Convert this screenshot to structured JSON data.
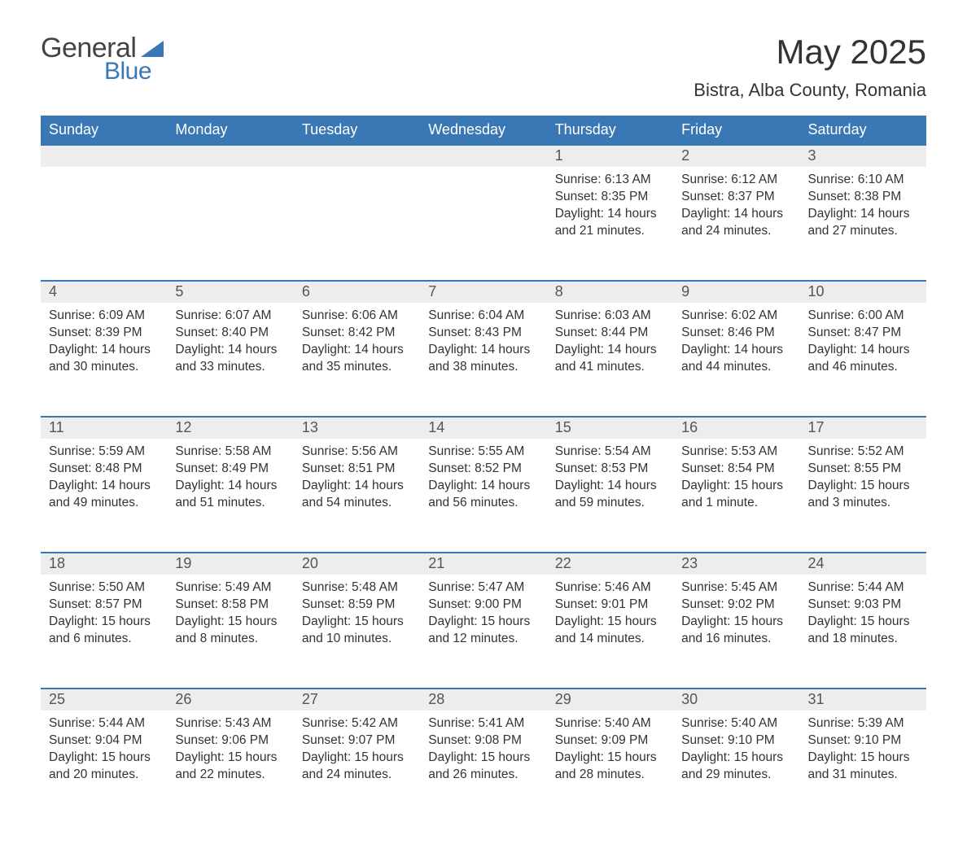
{
  "logo": {
    "text_general": "General",
    "text_blue": "Blue",
    "triangle_color": "#3a78b5"
  },
  "title": "May 2025",
  "location": "Bistra, Alba County, Romania",
  "colors": {
    "header_bg": "#3a78b5",
    "header_text": "#ffffff",
    "daynum_bg": "#ededed",
    "daynum_text": "#555555",
    "body_text": "#333333",
    "border_top": "#3a78b5"
  },
  "weekdays": [
    "Sunday",
    "Monday",
    "Tuesday",
    "Wednesday",
    "Thursday",
    "Friday",
    "Saturday"
  ],
  "first_weekday_index": 4,
  "labels": {
    "sunrise": "Sunrise",
    "sunset": "Sunset",
    "daylight": "Daylight"
  },
  "days": [
    {
      "n": 1,
      "sunrise": "6:13 AM",
      "sunset": "8:35 PM",
      "daylight": "14 hours and 21 minutes."
    },
    {
      "n": 2,
      "sunrise": "6:12 AM",
      "sunset": "8:37 PM",
      "daylight": "14 hours and 24 minutes."
    },
    {
      "n": 3,
      "sunrise": "6:10 AM",
      "sunset": "8:38 PM",
      "daylight": "14 hours and 27 minutes."
    },
    {
      "n": 4,
      "sunrise": "6:09 AM",
      "sunset": "8:39 PM",
      "daylight": "14 hours and 30 minutes."
    },
    {
      "n": 5,
      "sunrise": "6:07 AM",
      "sunset": "8:40 PM",
      "daylight": "14 hours and 33 minutes."
    },
    {
      "n": 6,
      "sunrise": "6:06 AM",
      "sunset": "8:42 PM",
      "daylight": "14 hours and 35 minutes."
    },
    {
      "n": 7,
      "sunrise": "6:04 AM",
      "sunset": "8:43 PM",
      "daylight": "14 hours and 38 minutes."
    },
    {
      "n": 8,
      "sunrise": "6:03 AM",
      "sunset": "8:44 PM",
      "daylight": "14 hours and 41 minutes."
    },
    {
      "n": 9,
      "sunrise": "6:02 AM",
      "sunset": "8:46 PM",
      "daylight": "14 hours and 44 minutes."
    },
    {
      "n": 10,
      "sunrise": "6:00 AM",
      "sunset": "8:47 PM",
      "daylight": "14 hours and 46 minutes."
    },
    {
      "n": 11,
      "sunrise": "5:59 AM",
      "sunset": "8:48 PM",
      "daylight": "14 hours and 49 minutes."
    },
    {
      "n": 12,
      "sunrise": "5:58 AM",
      "sunset": "8:49 PM",
      "daylight": "14 hours and 51 minutes."
    },
    {
      "n": 13,
      "sunrise": "5:56 AM",
      "sunset": "8:51 PM",
      "daylight": "14 hours and 54 minutes."
    },
    {
      "n": 14,
      "sunrise": "5:55 AM",
      "sunset": "8:52 PM",
      "daylight": "14 hours and 56 minutes."
    },
    {
      "n": 15,
      "sunrise": "5:54 AM",
      "sunset": "8:53 PM",
      "daylight": "14 hours and 59 minutes."
    },
    {
      "n": 16,
      "sunrise": "5:53 AM",
      "sunset": "8:54 PM",
      "daylight": "15 hours and 1 minute."
    },
    {
      "n": 17,
      "sunrise": "5:52 AM",
      "sunset": "8:55 PM",
      "daylight": "15 hours and 3 minutes."
    },
    {
      "n": 18,
      "sunrise": "5:50 AM",
      "sunset": "8:57 PM",
      "daylight": "15 hours and 6 minutes."
    },
    {
      "n": 19,
      "sunrise": "5:49 AM",
      "sunset": "8:58 PM",
      "daylight": "15 hours and 8 minutes."
    },
    {
      "n": 20,
      "sunrise": "5:48 AM",
      "sunset": "8:59 PM",
      "daylight": "15 hours and 10 minutes."
    },
    {
      "n": 21,
      "sunrise": "5:47 AM",
      "sunset": "9:00 PM",
      "daylight": "15 hours and 12 minutes."
    },
    {
      "n": 22,
      "sunrise": "5:46 AM",
      "sunset": "9:01 PM",
      "daylight": "15 hours and 14 minutes."
    },
    {
      "n": 23,
      "sunrise": "5:45 AM",
      "sunset": "9:02 PM",
      "daylight": "15 hours and 16 minutes."
    },
    {
      "n": 24,
      "sunrise": "5:44 AM",
      "sunset": "9:03 PM",
      "daylight": "15 hours and 18 minutes."
    },
    {
      "n": 25,
      "sunrise": "5:44 AM",
      "sunset": "9:04 PM",
      "daylight": "15 hours and 20 minutes."
    },
    {
      "n": 26,
      "sunrise": "5:43 AM",
      "sunset": "9:06 PM",
      "daylight": "15 hours and 22 minutes."
    },
    {
      "n": 27,
      "sunrise": "5:42 AM",
      "sunset": "9:07 PM",
      "daylight": "15 hours and 24 minutes."
    },
    {
      "n": 28,
      "sunrise": "5:41 AM",
      "sunset": "9:08 PM",
      "daylight": "15 hours and 26 minutes."
    },
    {
      "n": 29,
      "sunrise": "5:40 AM",
      "sunset": "9:09 PM",
      "daylight": "15 hours and 28 minutes."
    },
    {
      "n": 30,
      "sunrise": "5:40 AM",
      "sunset": "9:10 PM",
      "daylight": "15 hours and 29 minutes."
    },
    {
      "n": 31,
      "sunrise": "5:39 AM",
      "sunset": "9:10 PM",
      "daylight": "15 hours and 31 minutes."
    }
  ]
}
